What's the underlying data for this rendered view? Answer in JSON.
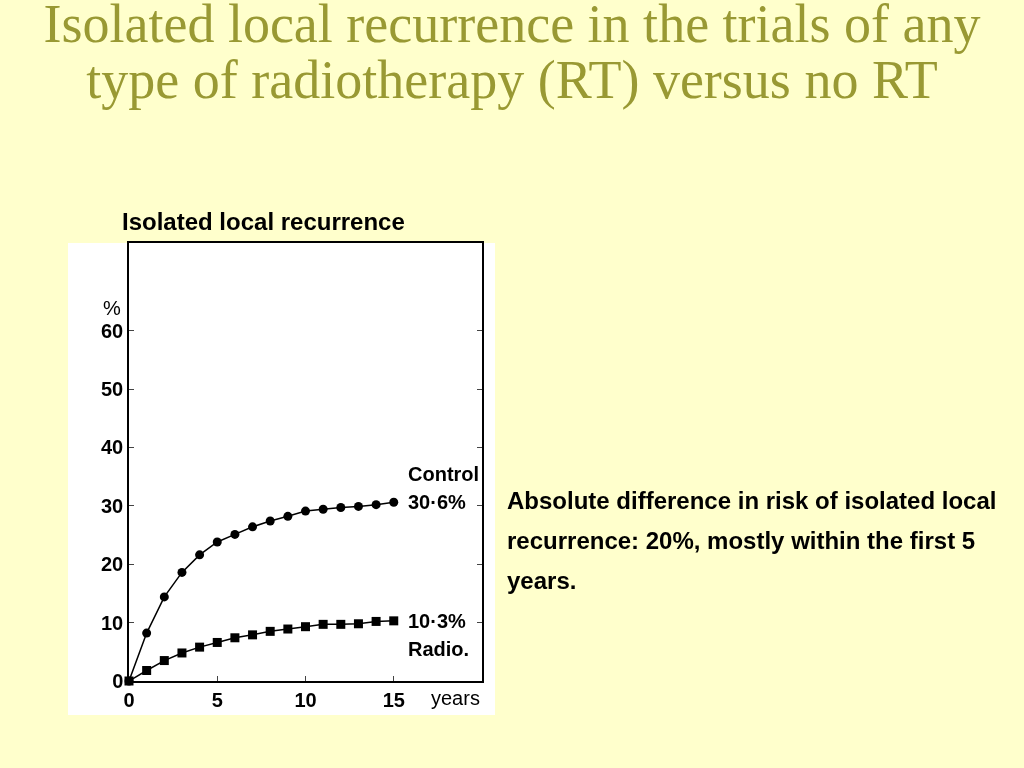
{
  "chart_data": {
    "type": "line",
    "title": "Isolated local recurrence in the trials of any type of radiotherapy (RT) versus no RT",
    "subtitle": "Isolated local recurrence",
    "xlabel": "years",
    "ylabel": "%",
    "x": [
      0,
      1,
      2,
      3,
      4,
      5,
      6,
      7,
      8,
      9,
      10,
      11,
      12,
      13,
      14,
      15
    ],
    "series": [
      {
        "name": "Control",
        "color": "#000000",
        "marker": "circle",
        "values": [
          0,
          8.2,
          14.4,
          18.6,
          21.6,
          23.8,
          25.1,
          26.4,
          27.4,
          28.2,
          29.1,
          29.4,
          29.7,
          29.9,
          30.2,
          30.6
        ]
      },
      {
        "name": "Radio.",
        "color": "#000000",
        "marker": "square",
        "values": [
          0,
          1.8,
          3.5,
          4.8,
          5.8,
          6.6,
          7.4,
          7.9,
          8.5,
          8.9,
          9.3,
          9.7,
          9.7,
          9.8,
          10.2,
          10.3
        ]
      }
    ],
    "annotations": [
      {
        "text": "30·6%",
        "x": 15,
        "y": 30.6
      },
      {
        "text": "10·3%",
        "x": 15,
        "y": 10.3
      },
      "Absolute difference in risk of isolated local recurrence: 20%, mostly within the first 5 years."
    ],
    "xlim": [
      0,
      20
    ],
    "xticks": [
      0,
      5,
      10,
      15
    ],
    "ylim": [
      0,
      75
    ],
    "yticks": [
      0,
      10,
      20,
      30,
      40,
      50,
      60
    ],
    "grid": false,
    "legend": false,
    "line_style": "solid"
  }
}
